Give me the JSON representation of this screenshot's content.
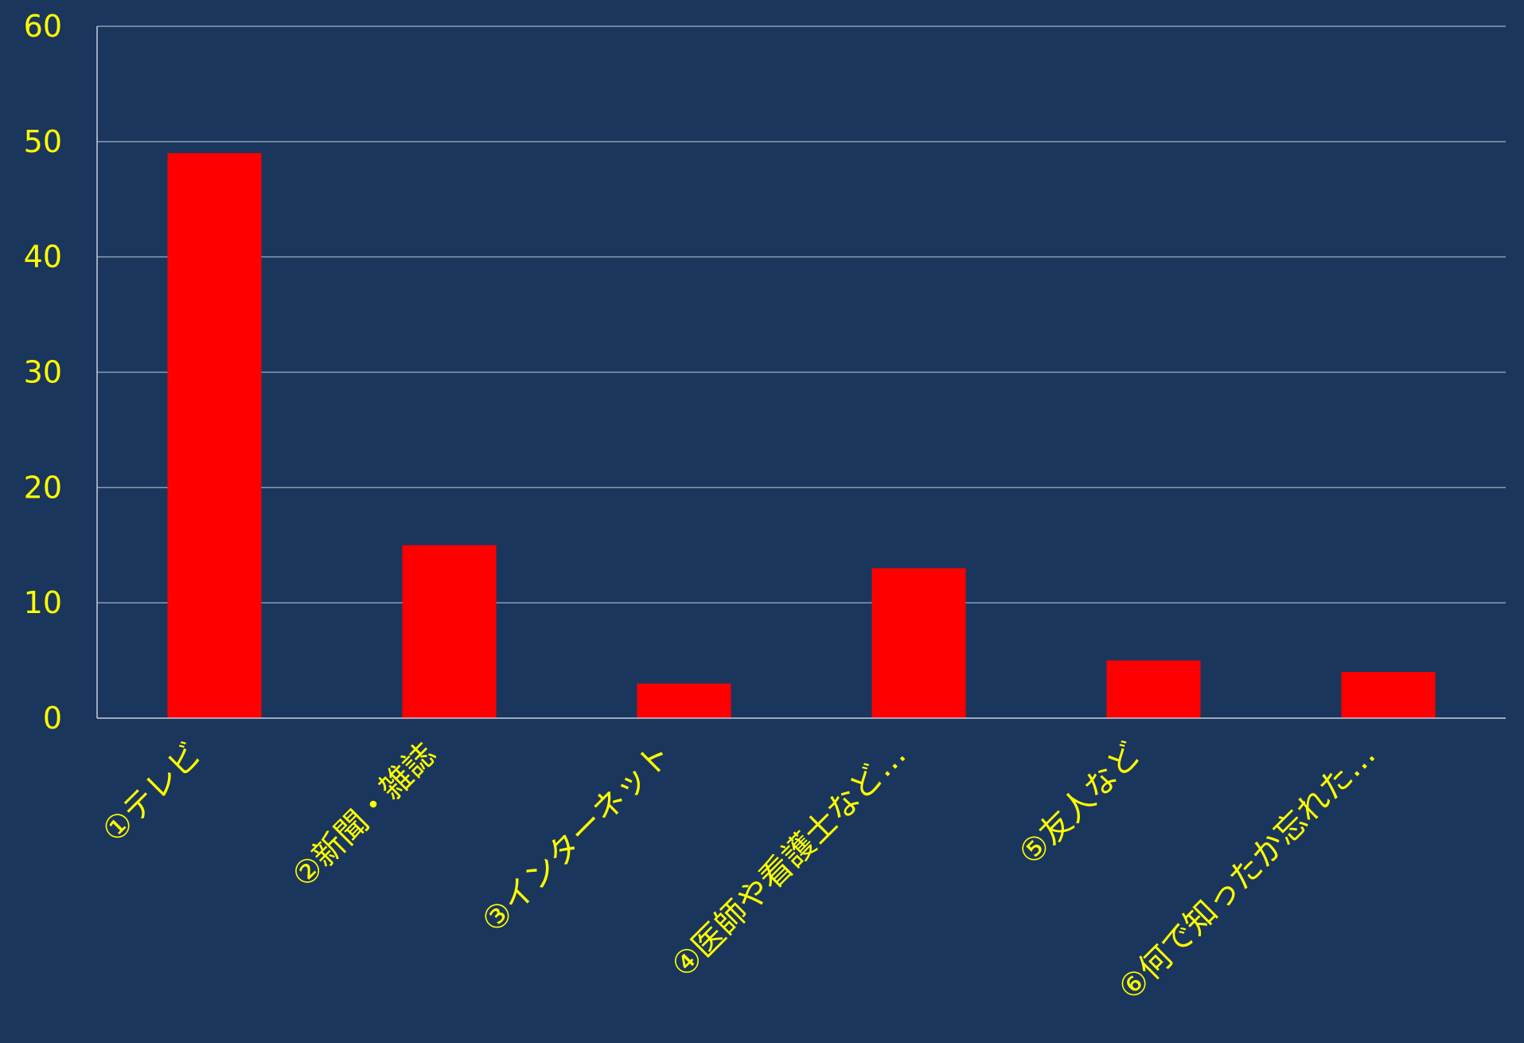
{
  "chart_data": {
    "type": "bar",
    "title": "",
    "xlabel": "",
    "ylabel": "",
    "categories": [
      "①テレビ",
      "②新聞・雑誌",
      "③インターネット",
      "④医師や看護士など…",
      "⑤友人など",
      "⑥何で知ったか忘れた…"
    ],
    "values": [
      49,
      15,
      3,
      13,
      5,
      4
    ],
    "ylim": [
      0,
      60
    ],
    "yticks": [
      0,
      10,
      20,
      30,
      40,
      50,
      60
    ],
    "grid": true,
    "legend": "none"
  },
  "colors": {
    "background": "#1b365d",
    "bar": "#ff0000",
    "tick_label": "#ffff00",
    "gridline": "#8a9bb3",
    "axis": "#c5d0df"
  }
}
